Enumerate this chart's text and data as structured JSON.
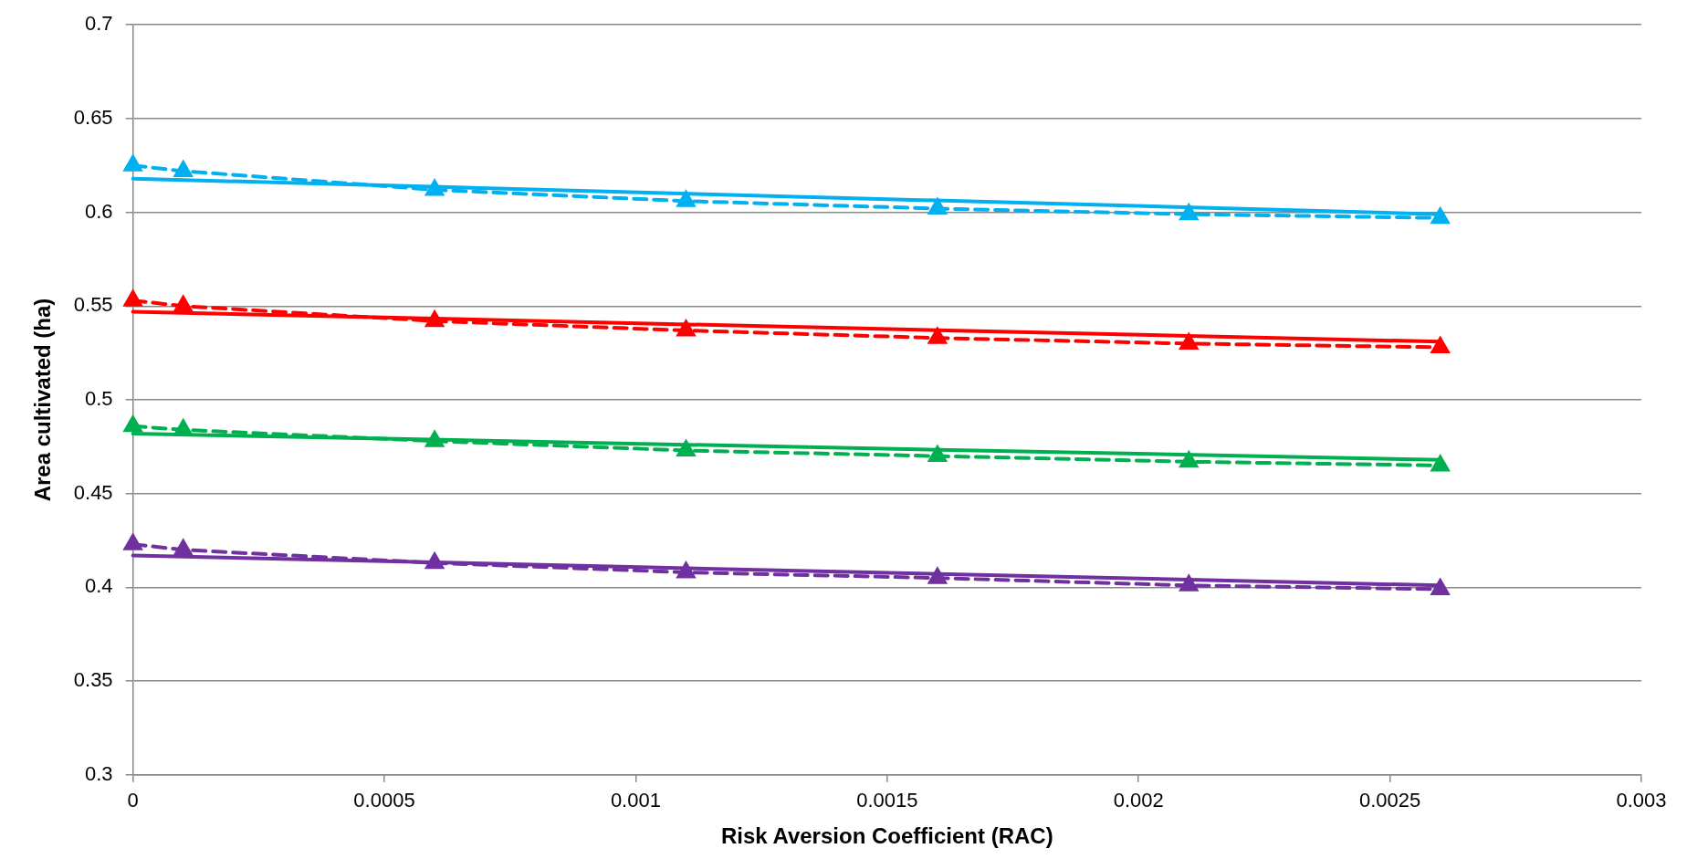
{
  "chart_data": {
    "type": "line",
    "xlabel": "Risk Aversion Coefficient (RAC)",
    "ylabel": "Area cultivated (ha)",
    "xlim": [
      0,
      0.003
    ],
    "xticks": [
      0,
      0.0005,
      0.001,
      0.0015,
      0.002,
      0.0025,
      0.003
    ],
    "ylim": [
      0.3,
      0.7
    ],
    "yticks": [
      0.3,
      0.35,
      0.4,
      0.45,
      0.5,
      0.55,
      0.6,
      0.65,
      0.7
    ],
    "grid": "y",
    "legend": false,
    "series": [
      {
        "type": "line",
        "color": "#00b0f0",
        "marker": "triangle",
        "line_style": "dashed",
        "x": [
          0,
          0.0001,
          0.0006,
          0.0011,
          0.0016,
          0.0021,
          0.0026
        ],
        "values": [
          0.625,
          0.622,
          0.612,
          0.606,
          0.602,
          0.599,
          0.597
        ]
      },
      {
        "type": "line",
        "color": "#00b0f0",
        "marker": "none",
        "line_style": "solid",
        "x": [
          0,
          0.0026
        ],
        "values": [
          0.618,
          0.599
        ]
      },
      {
        "type": "line",
        "color": "#ff0000",
        "marker": "triangle",
        "line_style": "dashed",
        "x": [
          0,
          0.0001,
          0.0006,
          0.0011,
          0.0016,
          0.0021,
          0.0026
        ],
        "values": [
          0.553,
          0.55,
          0.542,
          0.537,
          0.533,
          0.53,
          0.528
        ]
      },
      {
        "type": "line",
        "color": "#ff0000",
        "marker": "none",
        "line_style": "solid",
        "x": [
          0,
          0.0026
        ],
        "values": [
          0.547,
          0.531
        ]
      },
      {
        "type": "line",
        "color": "#00b050",
        "marker": "triangle",
        "line_style": "dashed",
        "x": [
          0,
          0.0001,
          0.0006,
          0.0011,
          0.0016,
          0.0021,
          0.0026
        ],
        "values": [
          0.486,
          0.484,
          0.478,
          0.473,
          0.47,
          0.467,
          0.465
        ]
      },
      {
        "type": "line",
        "color": "#00b050",
        "marker": "none",
        "line_style": "solid",
        "x": [
          0,
          0.0026
        ],
        "values": [
          0.482,
          0.468
        ]
      },
      {
        "type": "line",
        "color": "#7030a0",
        "marker": "triangle",
        "line_style": "dashed",
        "x": [
          0,
          0.0001,
          0.0006,
          0.0011,
          0.0016,
          0.0021,
          0.0026
        ],
        "values": [
          0.423,
          0.42,
          0.413,
          0.408,
          0.405,
          0.401,
          0.399
        ]
      },
      {
        "type": "line",
        "color": "#7030a0",
        "marker": "none",
        "line_style": "solid",
        "x": [
          0,
          0.0026
        ],
        "values": [
          0.417,
          0.401
        ]
      }
    ]
  }
}
